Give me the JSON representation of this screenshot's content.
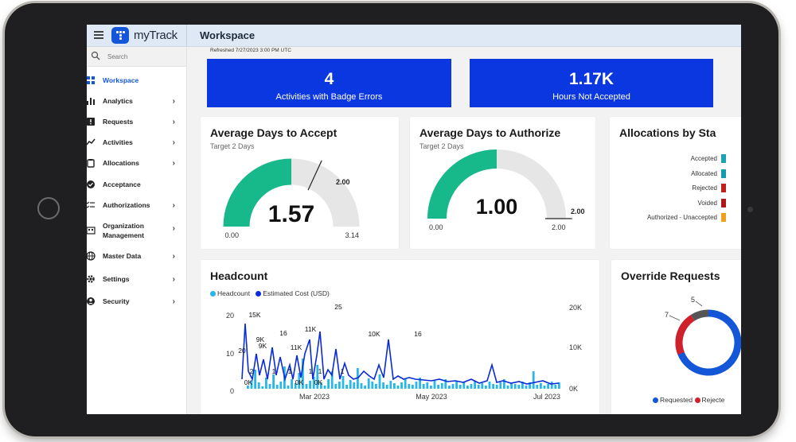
{
  "app": {
    "name": "myTrack",
    "page_title": "Workspace"
  },
  "search": {
    "placeholder": "Search"
  },
  "sidebar": {
    "items": [
      {
        "label": "Workspace",
        "icon": "grid-icon",
        "has_chevron": false,
        "active": true
      },
      {
        "label": "Analytics",
        "icon": "bar-chart-icon",
        "has_chevron": true
      },
      {
        "label": "Requests",
        "icon": "alert-box-icon",
        "has_chevron": true
      },
      {
        "label": "Activities",
        "icon": "trend-line-icon",
        "has_chevron": true
      },
      {
        "label": "Allocations",
        "icon": "clipboard-icon",
        "has_chevron": true
      },
      {
        "label": "Acceptance",
        "icon": "check-circle-icon",
        "has_chevron": false
      },
      {
        "label": "Authorizations",
        "icon": "checklist-icon",
        "has_chevron": true
      },
      {
        "label": "Organization Management",
        "icon": "building-icon",
        "has_chevron": true
      },
      {
        "label": "Master Data",
        "icon": "globe-icon",
        "has_chevron": true
      },
      {
        "label": "Settings",
        "icon": "gear-icon",
        "has_chevron": true
      },
      {
        "label": "Security",
        "icon": "user-circle-icon",
        "has_chevron": true
      }
    ]
  },
  "refreshed": "Refreshed 7/27/2023 3:00 PM UTC",
  "kpis": [
    {
      "value": "4",
      "label": "Activities with Badge Errors"
    },
    {
      "value": "1.17K",
      "label": "Hours Not Accepted"
    }
  ],
  "gauge_accept": {
    "title": "Average Days to Accept",
    "subtitle": "Target 2 Days",
    "value": 1.57,
    "value_label": "1.57",
    "min_label": "0.00",
    "max_label": "3.14",
    "max": 3.14,
    "target": 2.0,
    "target_label": "2.00",
    "color": "#17b98a"
  },
  "gauge_authorize": {
    "title": "Average Days to Authorize",
    "subtitle": "Target 2 Days",
    "value": 1.0,
    "value_label": "1.00",
    "min_label": "0.00",
    "max_label": "2.00",
    "max": 2.0,
    "target": 2.0,
    "target_label": "2.00",
    "color": "#17b98a"
  },
  "allocations": {
    "title": "Allocations by Sta",
    "rows": [
      {
        "label": "Accepted",
        "color": "#1ba3b4"
      },
      {
        "label": "Allocated",
        "color": "#1a9aad"
      },
      {
        "label": "Rejected",
        "color": "#c0201b"
      },
      {
        "label": "Voided",
        "color": "#b01818"
      },
      {
        "label": "Authorized - Unaccepted",
        "color": "#f0a020"
      }
    ]
  },
  "headcount": {
    "title": "Headcount",
    "legend": [
      {
        "label": "Headcount",
        "color": "#29b6e8"
      },
      {
        "label": "Estimated Cost (USD)",
        "color": "#0a2bd6"
      }
    ],
    "left_ticks": [
      "20",
      "10",
      "0"
    ],
    "right_ticks": [
      "20K",
      "10K",
      "0K"
    ],
    "x_ticks": [
      "Mar 2023",
      "May 2023",
      "Jul 2023"
    ],
    "labels": [
      "15K",
      "9K",
      "16",
      "11K",
      "25",
      "10K",
      "16",
      "20",
      "11K",
      "9K",
      "2",
      "0K",
      "1",
      "1",
      "0K",
      "1",
      "0K",
      "1",
      "1"
    ]
  },
  "override": {
    "title": "Override Requests",
    "labels": [
      "5",
      "7"
    ],
    "legend": [
      {
        "label": "Requested",
        "color": "#1456d8"
      },
      {
        "label": "Rejecte",
        "color": "#d0202a"
      }
    ],
    "colors": {
      "requested": "#1456d8",
      "rejected": "#d0202a",
      "other": "#555"
    }
  }
}
